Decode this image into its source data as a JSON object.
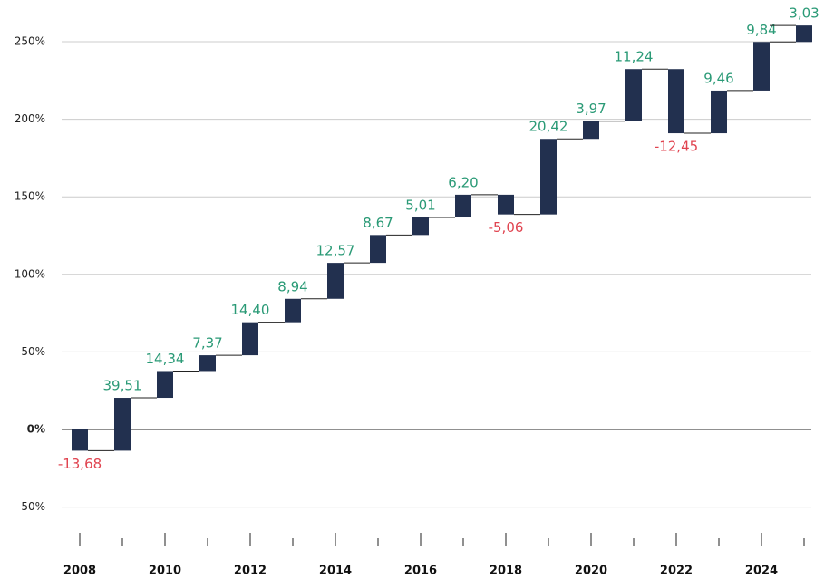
{
  "chart_data": {
    "type": "waterfall",
    "categories": [
      "2008",
      null,
      "2010",
      null,
      "2012",
      null,
      "2014",
      null,
      "2016",
      null,
      "2018",
      null,
      "2020",
      null,
      "2022",
      null,
      "2024",
      null
    ],
    "values": [
      -13.68,
      39.51,
      14.34,
      7.37,
      14.4,
      8.94,
      12.57,
      8.67,
      5.01,
      6.2,
      -5.06,
      20.42,
      3.97,
      11.24,
      -12.45,
      9.46,
      9.84,
      3.03
    ],
    "value_labels": [
      "-13,68",
      "39,51",
      "14,34",
      "7,37",
      "14,40",
      "8,94",
      "12,57",
      "8,67",
      "5,01",
      "6,20",
      "-5,06",
      "20,42",
      "3,97",
      "11,24",
      "-12,45",
      "9,46",
      "9,84",
      "3,03"
    ],
    "color": "#22304f",
    "positive_label_color": "#2a9a76",
    "negative_label_color": "#e0434f",
    "ylim": [
      -60,
      270
    ],
    "yticks": [
      {
        "value": -50,
        "label": "-50%"
      },
      {
        "value": 0,
        "label": "0%"
      },
      {
        "value": 50,
        "label": "50%"
      },
      {
        "value": 100,
        "label": "100%"
      },
      {
        "value": 150,
        "label": "150%"
      },
      {
        "value": 200,
        "label": "200%"
      },
      {
        "value": 250,
        "label": "250%"
      }
    ],
    "grid": true
  }
}
